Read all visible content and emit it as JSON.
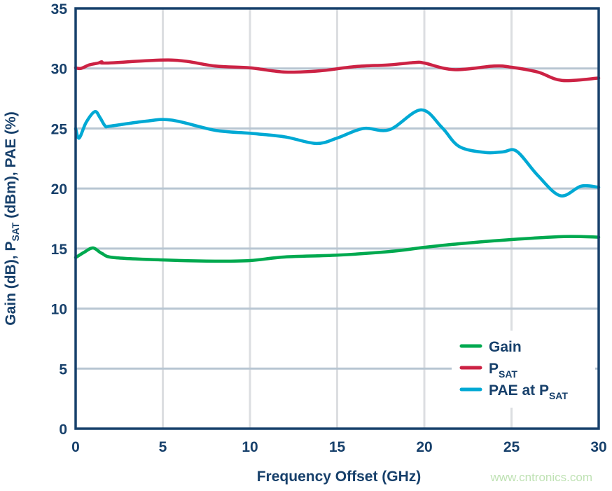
{
  "chart_data": {
    "type": "line",
    "xlabel": "Frequency Offset (GHz)",
    "ylabel_parts": [
      "Gain (dB), P",
      "SAT",
      " (dBm), PAE (%)"
    ],
    "xlim": [
      0,
      30
    ],
    "ylim": [
      0,
      35
    ],
    "xticks": [
      "0",
      "5",
      "10",
      "15",
      "20",
      "25",
      "30"
    ],
    "yticks": [
      "0",
      "5",
      "10",
      "15",
      "20",
      "25",
      "30",
      "35"
    ],
    "grid": true,
    "legend_position": "bottom-right",
    "series": [
      {
        "name": "Gain",
        "name_parts": [
          "Gain",
          ""
        ],
        "color": "#00a94f",
        "x": [
          0,
          0.5,
          1,
          1.5,
          2.2,
          5,
          8,
          10,
          12,
          15,
          18,
          20,
          22,
          25,
          28,
          30
        ],
        "y": [
          14.25,
          14.7,
          15.05,
          14.6,
          14.25,
          14.05,
          13.95,
          14.0,
          14.3,
          14.45,
          14.75,
          15.1,
          15.4,
          15.75,
          16.0,
          15.95
        ]
      },
      {
        "name": "PSAT",
        "name_parts": [
          "P",
          "SAT"
        ],
        "color": "#cc2244",
        "x": [
          0,
          0.3,
          0.8,
          1.3,
          1.5,
          1.8,
          5.5,
          8,
          10,
          12,
          14,
          16,
          18,
          19.5,
          20,
          21.7,
          24,
          25,
          26.5,
          27.9,
          30
        ],
        "y": [
          30.05,
          30.0,
          30.3,
          30.45,
          30.55,
          30.45,
          30.7,
          30.2,
          30.05,
          29.7,
          29.8,
          30.15,
          30.3,
          30.5,
          30.45,
          29.9,
          30.2,
          30.1,
          29.7,
          29.0,
          29.2
        ]
      },
      {
        "name": "PAE at PSAT",
        "name_parts": [
          "PAE at P",
          "SAT"
        ],
        "color": "#00a9d4",
        "x": [
          0,
          0.2,
          0.6,
          1.1,
          1.4,
          1.7,
          2,
          4,
          5.5,
          8,
          10,
          12,
          13.8,
          15,
          16.5,
          18,
          19.8,
          21,
          22,
          23.5,
          24.5,
          25.3,
          26.5,
          27.8,
          29,
          30
        ],
        "y": [
          25.0,
          24.2,
          25.5,
          26.4,
          25.9,
          25.2,
          25.2,
          25.6,
          25.7,
          24.85,
          24.6,
          24.3,
          23.75,
          24.2,
          25.0,
          24.9,
          26.55,
          25.1,
          23.5,
          23.0,
          23.05,
          23.1,
          21.1,
          19.4,
          20.2,
          20.1
        ]
      }
    ]
  },
  "watermark": "www.cntronics.com"
}
